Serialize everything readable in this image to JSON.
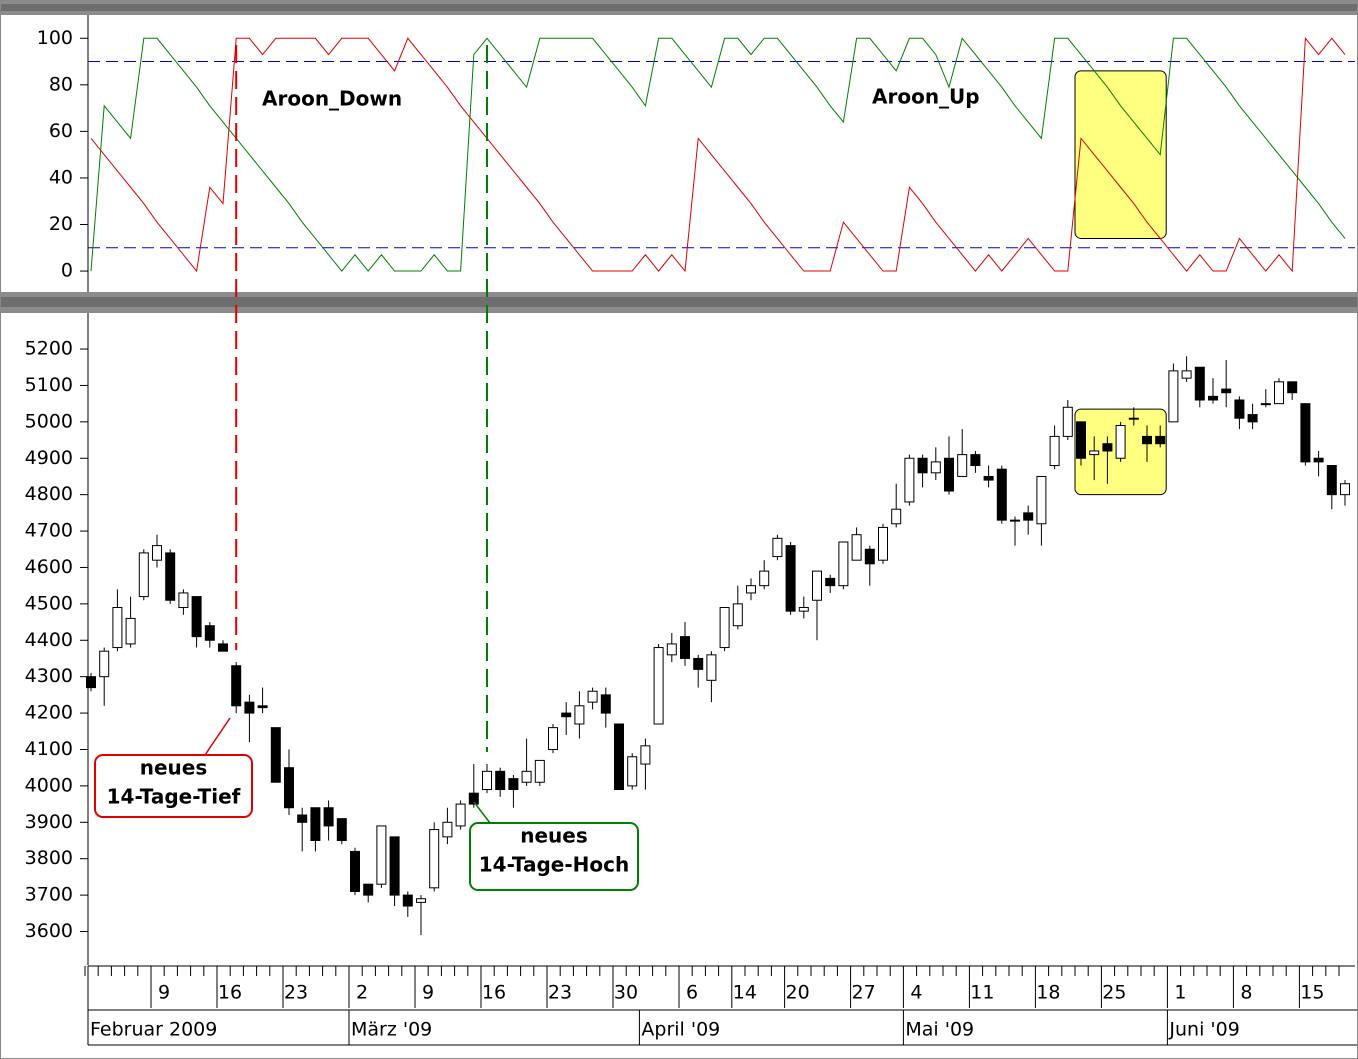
{
  "chart_data": [
    {
      "type": "line",
      "ylim": [
        -9,
        110
      ],
      "yticks": [
        0,
        20,
        40,
        60,
        80,
        100
      ],
      "reference_lines": [
        90,
        10
      ],
      "reference_color": "#0000cc",
      "highlight": {
        "from": 75,
        "to": 81,
        "low": 14,
        "high": 86,
        "color": "#ffff80"
      },
      "series": [
        {
          "name": "Aroon_Down",
          "color": "#e00000",
          "values": [
            57,
            50,
            43,
            36,
            29,
            21,
            14,
            7,
            0,
            36,
            29,
            100,
            100,
            93,
            100,
            100,
            100,
            100,
            93,
            100,
            100,
            100,
            93,
            86,
            100,
            93,
            86,
            79,
            71,
            64,
            57,
            50,
            43,
            36,
            29,
            21,
            14,
            7,
            0,
            0,
            0,
            0,
            7,
            0,
            7,
            0,
            57,
            50,
            43,
            36,
            29,
            21,
            14,
            7,
            0,
            0,
            0,
            21,
            14,
            7,
            0,
            0,
            36,
            29,
            21,
            14,
            7,
            0,
            7,
            0,
            7,
            14,
            7,
            0,
            0,
            57,
            50,
            43,
            36,
            29,
            21,
            14,
            7,
            0,
            7,
            0,
            0,
            14,
            7,
            0,
            7,
            0,
            100,
            93,
            100,
            93
          ]
        },
        {
          "name": "Aroon_Up",
          "color": "#008000",
          "values": [
            0,
            71,
            64,
            57,
            100,
            100,
            93,
            86,
            79,
            71,
            64,
            57,
            50,
            43,
            36,
            29,
            21,
            14,
            7,
            0,
            7,
            0,
            7,
            0,
            0,
            0,
            7,
            0,
            0,
            93,
            100,
            93,
            86,
            79,
            100,
            100,
            100,
            100,
            100,
            93,
            86,
            79,
            71,
            100,
            100,
            93,
            86,
            79,
            100,
            100,
            93,
            100,
            100,
            93,
            86,
            79,
            71,
            64,
            100,
            100,
            93,
            86,
            100,
            100,
            93,
            79,
            100,
            93,
            86,
            79,
            71,
            64,
            57,
            100,
            100,
            93,
            86,
            79,
            71,
            64,
            57,
            50,
            100,
            100,
            93,
            86,
            79,
            71,
            64,
            57,
            50,
            43,
            36,
            29,
            21,
            14
          ]
        }
      ]
    },
    {
      "type": "candlestick",
      "ylim": [
        3508,
        5299
      ],
      "yticks": [
        3600,
        3700,
        3800,
        3900,
        4000,
        4100,
        4200,
        4300,
        4400,
        4500,
        4600,
        4700,
        4800,
        4900,
        5000,
        5100,
        5200
      ],
      "categories": [
        null,
        null,
        null,
        null,
        null,
        "9",
        null,
        null,
        null,
        null,
        "16",
        null,
        null,
        null,
        null,
        "23",
        null,
        null,
        null,
        null,
        "2",
        null,
        null,
        null,
        null,
        "9",
        null,
        null,
        null,
        null,
        "16",
        null,
        null,
        null,
        null,
        "23",
        null,
        null,
        null,
        null,
        "30",
        null,
        null,
        null,
        null,
        "6",
        null,
        null,
        null,
        "14",
        null,
        null,
        null,
        "20",
        null,
        null,
        null,
        null,
        "27",
        null,
        null,
        null,
        "4",
        null,
        null,
        null,
        null,
        "11",
        null,
        null,
        null,
        null,
        "18",
        null,
        null,
        null,
        null,
        "25",
        null,
        null,
        null,
        null,
        "1",
        null,
        null,
        null,
        null,
        "8",
        null,
        null,
        null,
        null,
        "15",
        null,
        null,
        null
      ],
      "months": [
        {
          "label": "Februar 2009",
          "start": 0
        },
        {
          "label": "März '09",
          "start": 20
        },
        {
          "label": "April '09",
          "start": 42
        },
        {
          "label": "Mai '09",
          "start": 62
        },
        {
          "label": "Juni '09",
          "start": 82
        }
      ],
      "open": [
        4300,
        4300,
        4380,
        4390,
        4520,
        4620,
        4640,
        4490,
        4520,
        4440,
        4390,
        4330,
        4230,
        4220,
        4160,
        4050,
        3920,
        3940,
        3940,
        3910,
        3820,
        3730,
        3730,
        3860,
        3700,
        3680,
        3720,
        3860,
        3890,
        3980,
        3990,
        4040,
        4020,
        4010,
        4010,
        4100,
        4200,
        4170,
        4230,
        4250,
        4170,
        4000,
        4060,
        4170,
        4360,
        4410,
        4350,
        4290,
        4380,
        4440,
        4530,
        4550,
        4630,
        4660,
        4480,
        4510,
        4570,
        4550,
        4620,
        4650,
        4620,
        4720,
        4780,
        4900,
        4860,
        4900,
        4850,
        4910,
        4850,
        4870,
        4730,
        4750,
        4720,
        4880,
        4960,
        5000,
        4910,
        4940,
        4900,
        5010,
        4960,
        4960,
        5000,
        5120,
        5150,
        5070,
        5090,
        5060,
        5020,
        5050,
        5050,
        5110,
        5050,
        4900,
        4880,
        4800
      ],
      "high": [
        4310,
        4380,
        4540,
        4520,
        4650,
        4690,
        4650,
        4540,
        4520,
        4450,
        4400,
        4340,
        4250,
        4270,
        4160,
        4100,
        3940,
        3940,
        3960,
        3910,
        3830,
        3730,
        3890,
        3860,
        3710,
        3700,
        3900,
        3940,
        3960,
        4060,
        4060,
        4050,
        4030,
        4130,
        4070,
        4170,
        4230,
        4260,
        4270,
        4270,
        4170,
        4090,
        4130,
        4390,
        4420,
        4450,
        4360,
        4370,
        4490,
        4550,
        4570,
        4620,
        4690,
        4670,
        4520,
        4590,
        4580,
        4670,
        4710,
        4660,
        4720,
        4830,
        4910,
        4910,
        4930,
        4960,
        4980,
        4920,
        4880,
        4880,
        4740,
        4770,
        4850,
        4990,
        5060,
        5000,
        4960,
        4960,
        5000,
        5040,
        4990,
        4990,
        5160,
        5180,
        5150,
        5120,
        5170,
        5070,
        5050,
        5090,
        5120,
        5110,
        5050,
        4920,
        4880,
        4840
      ],
      "low": [
        4260,
        4220,
        4370,
        4380,
        4510,
        4600,
        4500,
        4470,
        4380,
        4380,
        4370,
        4200,
        4120,
        4200,
        4010,
        3920,
        3820,
        3820,
        3850,
        3840,
        3700,
        3680,
        3720,
        3670,
        3640,
        3590,
        3710,
        3840,
        3880,
        3940,
        3980,
        3970,
        3940,
        4000,
        4000,
        4090,
        4140,
        4130,
        4210,
        4160,
        3990,
        3990,
        3990,
        4170,
        4340,
        4330,
        4270,
        4230,
        4370,
        4430,
        4510,
        4540,
        4620,
        4470,
        4460,
        4400,
        4530,
        4540,
        4620,
        4550,
        4610,
        4710,
        4770,
        4820,
        4840,
        4800,
        4850,
        4860,
        4820,
        4720,
        4660,
        4690,
        4660,
        4870,
        4950,
        4880,
        4840,
        4830,
        4890,
        4990,
        4890,
        4930,
        5000,
        5110,
        5040,
        5050,
        5040,
        4980,
        4980,
        5040,
        5050,
        5060,
        4880,
        4850,
        4760,
        4770
      ],
      "close": [
        4270,
        4370,
        4490,
        4460,
        4640,
        4660,
        4510,
        4530,
        4410,
        4400,
        4370,
        4220,
        4200,
        4215,
        4010,
        3940,
        3900,
        3850,
        3890,
        3850,
        3710,
        3700,
        3890,
        3700,
        3670,
        3690,
        3880,
        3900,
        3950,
        3950,
        4040,
        3990,
        3990,
        4040,
        4070,
        4160,
        4190,
        4220,
        4260,
        4200,
        3990,
        4080,
        4110,
        4380,
        4390,
        4350,
        4320,
        4360,
        4490,
        4500,
        4550,
        4590,
        4680,
        4480,
        4490,
        4590,
        4550,
        4670,
        4690,
        4610,
        4710,
        4760,
        4900,
        4860,
        4890,
        4810,
        4910,
        4880,
        4840,
        4730,
        4730,
        4730,
        4850,
        4960,
        5040,
        4900,
        4920,
        4920,
        4990,
        5010,
        4940,
        4940,
        5140,
        5140,
        5060,
        5060,
        5080,
        5010,
        5000,
        5050,
        5110,
        5080,
        4890,
        4890,
        4800,
        4830
      ],
      "highlight": {
        "from": 75,
        "to": 81,
        "low": 4800,
        "high": 5035,
        "color": "#ffff80"
      },
      "annotations": [
        {
          "lines": [
            "neues",
            "14-Tage-Tief"
          ],
          "color": "#e00000",
          "index": 11
        },
        {
          "lines": [
            "neues",
            "14-Tage-Hoch"
          ],
          "color": "#008000",
          "index": 30
        }
      ]
    }
  ]
}
